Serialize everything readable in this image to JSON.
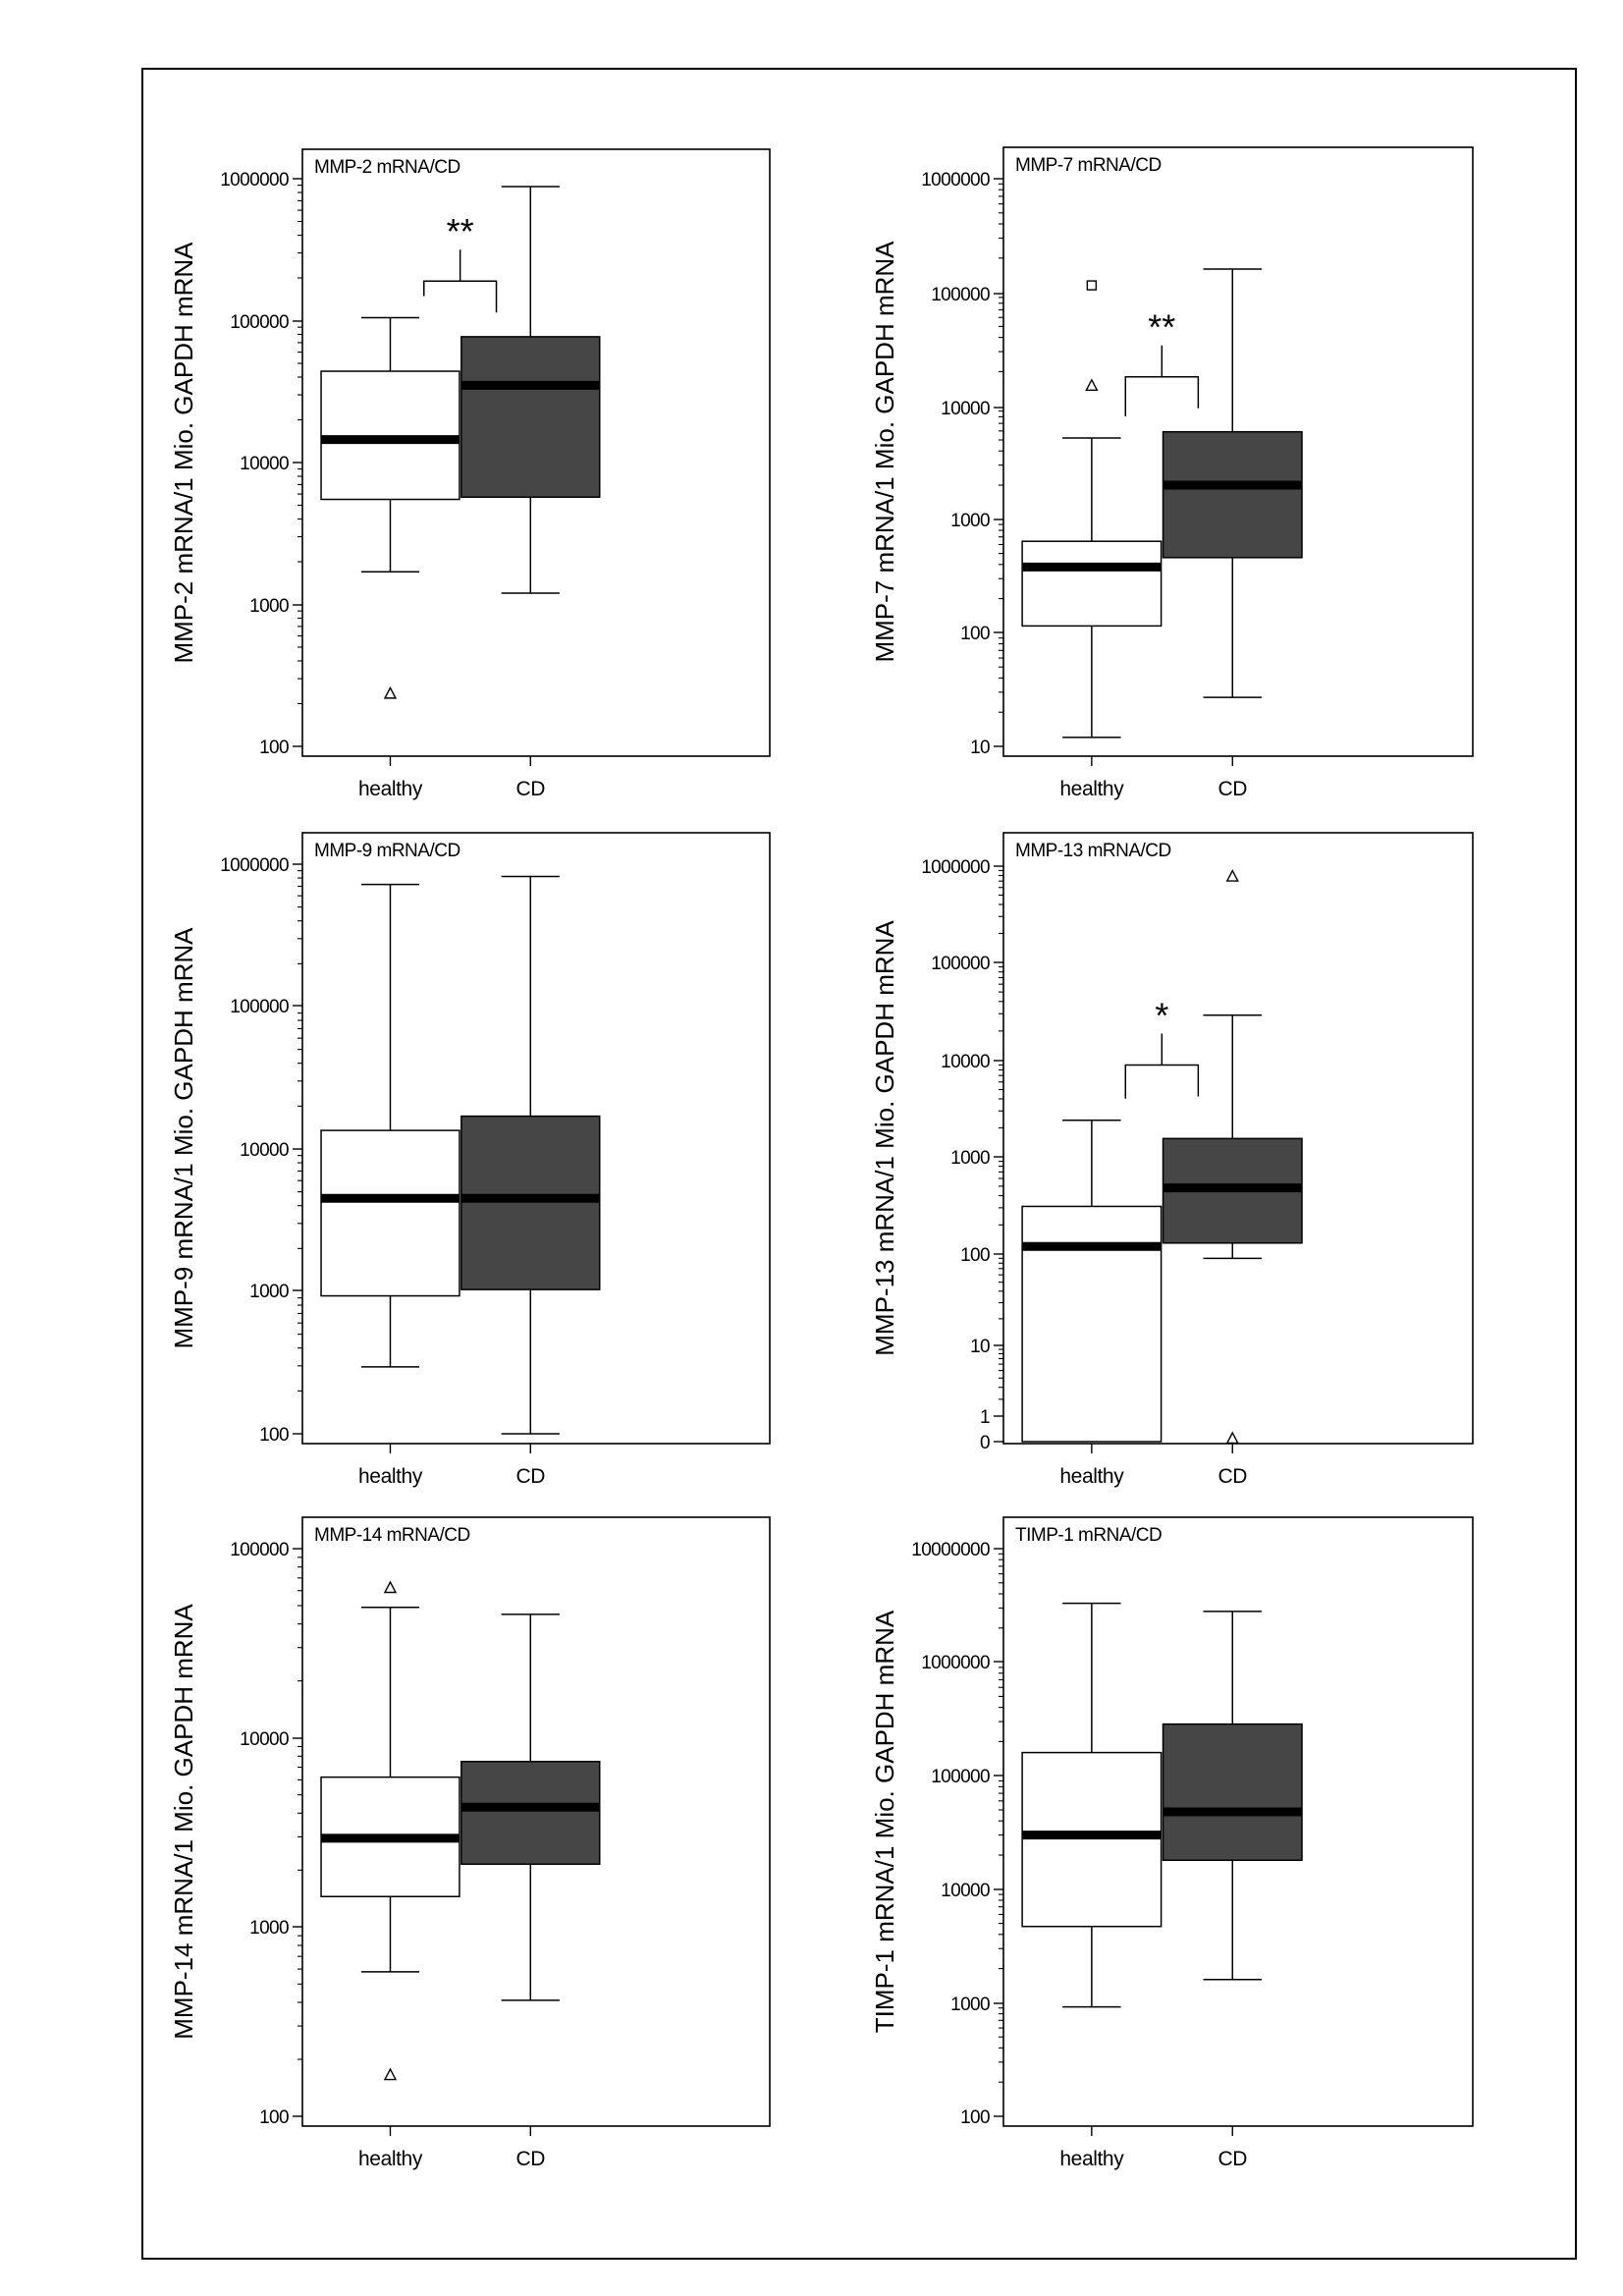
{
  "chart_data": [
    {
      "type": "box",
      "title": "MMP-2 mRNA/CD",
      "ylabel": "MMP-2 mRNA/1 Mio. GAPDH mRNA",
      "yscale": "log",
      "ylim": [
        100,
        1000000
      ],
      "yticks": [
        100,
        1000,
        10000,
        100000,
        1000000
      ],
      "ytick_labels": [
        "100",
        "1000",
        "10000",
        "100000",
        "1000000"
      ],
      "categories": [
        "healthy",
        "CD"
      ],
      "boxes": [
        {
          "category": "healthy",
          "fill": "#ffffff",
          "whisker_low": 1700,
          "q1": 5500,
          "median": 14500,
          "q3": 44000,
          "whisker_high": 105000,
          "outliers": [
            {
              "value": 235,
              "marker": "triangle"
            }
          ]
        },
        {
          "category": "CD",
          "fill": "#464646",
          "whisker_low": 1200,
          "q1": 5700,
          "median": 35000,
          "q3": 77000,
          "whisker_high": 880000,
          "outliers": []
        }
      ],
      "significance": {
        "label": "**",
        "y": 190000
      }
    },
    {
      "type": "box",
      "title": "MMP-7 mRNA/CD",
      "ylabel": "MMP-7 mRNA/1 Mio. GAPDH mRNA",
      "yscale": "log",
      "ylim": [
        10,
        1000000
      ],
      "yticks": [
        10,
        100,
        1000,
        10000,
        100000,
        1000000
      ],
      "ytick_labels": [
        "10",
        "100",
        "1000",
        "10000",
        "100000",
        "1000000"
      ],
      "categories": [
        "healthy",
        "CD"
      ],
      "boxes": [
        {
          "category": "healthy",
          "fill": "#ffffff",
          "whisker_low": 12,
          "q1": 115,
          "median": 380,
          "q3": 640,
          "whisker_high": 5200,
          "outliers": [
            {
              "value": 15000,
              "marker": "triangle"
            },
            {
              "value": 115000,
              "marker": "square"
            }
          ]
        },
        {
          "category": "CD",
          "fill": "#464646",
          "whisker_low": 27,
          "q1": 460,
          "median": 2000,
          "q3": 5900,
          "whisker_high": 160000,
          "outliers": []
        }
      ],
      "significance": {
        "label": "**",
        "y": 18000
      }
    },
    {
      "type": "box",
      "title": "MMP-9 mRNA/CD",
      "ylabel": "MMP-9 mRNA/1 Mio. GAPDH mRNA",
      "yscale": "log",
      "ylim": [
        100,
        1000000
      ],
      "yticks": [
        100,
        1000,
        10000,
        100000,
        1000000
      ],
      "ytick_labels": [
        "100",
        "1000",
        "10000",
        "100000",
        "1000000"
      ],
      "categories": [
        "healthy",
        "CD"
      ],
      "boxes": [
        {
          "category": "healthy",
          "fill": "#ffffff",
          "whisker_low": 295,
          "q1": 930,
          "median": 4500,
          "q3": 13500,
          "whisker_high": 720000,
          "outliers": []
        },
        {
          "category": "CD",
          "fill": "#464646",
          "whisker_low": 100,
          "q1": 1030,
          "median": 4500,
          "q3": 17000,
          "whisker_high": 820000,
          "outliers": []
        }
      ],
      "significance": null
    },
    {
      "type": "box",
      "title": "MMP-13 mRNA/CD",
      "ylabel": "MMP-13 mRNA/1 Mio. GAPDH mRNA",
      "yscale": "log1p",
      "ylim": [
        0,
        1000000
      ],
      "yticks": [
        0,
        1,
        10,
        100,
        1000,
        10000,
        100000,
        1000000
      ],
      "ytick_labels": [
        "0",
        "1",
        "10",
        "100",
        "1000",
        "10000",
        "100000",
        "1000000"
      ],
      "categories": [
        "healthy",
        "CD"
      ],
      "boxes": [
        {
          "category": "healthy",
          "fill": "#ffffff",
          "whisker_low": 0,
          "q1": 0,
          "median": 120,
          "q3": 310,
          "whisker_high": 2400,
          "outliers": []
        },
        {
          "category": "CD",
          "fill": "#464646",
          "whisker_low": 90,
          "q1": 130,
          "median": 480,
          "q3": 1550,
          "whisker_high": 29000,
          "outliers": [
            {
              "value": 780000,
              "marker": "triangle"
            },
            {
              "value": 0,
              "marker": "triangle"
            }
          ]
        }
      ],
      "significance": {
        "label": "*",
        "y": 9000
      }
    },
    {
      "type": "box",
      "title": "MMP-14 mRNA/CD",
      "ylabel": "MMP-14 mRNA/1 Mio. GAPDH mRNA",
      "yscale": "log",
      "ylim": [
        100,
        100000
      ],
      "yticks": [
        100,
        1000,
        10000,
        100000
      ],
      "ytick_labels": [
        "100",
        "1000",
        "10000",
        "100000"
      ],
      "categories": [
        "healthy",
        "CD"
      ],
      "boxes": [
        {
          "category": "healthy",
          "fill": "#ffffff",
          "whisker_low": 580,
          "q1": 1450,
          "median": 2950,
          "q3": 6200,
          "whisker_high": 49000,
          "outliers": [
            {
              "value": 62000,
              "marker": "triangle"
            },
            {
              "value": 165,
              "marker": "triangle"
            }
          ]
        },
        {
          "category": "CD",
          "fill": "#464646",
          "whisker_low": 410,
          "q1": 2150,
          "median": 4300,
          "q3": 7500,
          "whisker_high": 45000,
          "outliers": []
        }
      ],
      "significance": null
    },
    {
      "type": "box",
      "title": "TIMP-1 mRNA/CD",
      "ylabel": "TIMP-1 mRNA/1 Mio. GAPDH mRNA",
      "yscale": "log",
      "ylim": [
        100,
        10000000
      ],
      "yticks": [
        100,
        1000,
        10000,
        100000,
        1000000,
        10000000
      ],
      "ytick_labels": [
        "100",
        "1000",
        "10000",
        "100000",
        "1000000",
        "10000000"
      ],
      "categories": [
        "healthy",
        "CD"
      ],
      "boxes": [
        {
          "category": "healthy",
          "fill": "#ffffff",
          "whisker_low": 920,
          "q1": 4700,
          "median": 30000,
          "q3": 160000,
          "whisker_high": 3300000,
          "outliers": []
        },
        {
          "category": "CD",
          "fill": "#464646",
          "whisker_low": 1600,
          "q1": 18000,
          "median": 48000,
          "q3": 285000,
          "whisker_high": 2800000,
          "outliers": []
        }
      ],
      "significance": null
    }
  ]
}
